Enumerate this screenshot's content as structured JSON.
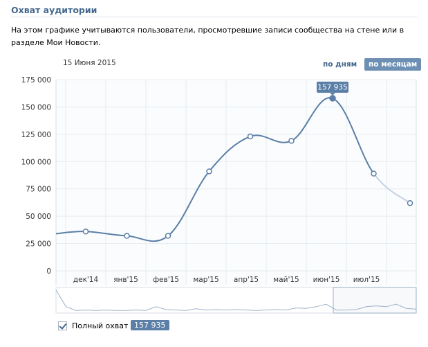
{
  "header": {
    "title": "Охват аудитории",
    "description": "На этом графике учитываются пользователи, просмотревшие записи сообщества на стене или в разделе Мои Новости."
  },
  "controls": {
    "date": "15 Июня 2015",
    "by_days": "по дням",
    "by_months": "по месяцам"
  },
  "legend": {
    "label": "Полный охват",
    "value": "157 935"
  },
  "tooltip": "157 935",
  "colors": {
    "line": "#5b7fa6",
    "line_faded": "#c5d3e2",
    "grid": "#e6ebf0",
    "accent": "#6d8fb3"
  },
  "chart_data": {
    "type": "line",
    "title": "",
    "xlabel": "",
    "ylabel": "",
    "ylim": [
      0,
      175000
    ],
    "yticks": [
      0,
      25000,
      50000,
      75000,
      100000,
      125000,
      150000,
      175000
    ],
    "ytick_labels": [
      "0",
      "25 000",
      "50 000",
      "75 000",
      "100 000",
      "125 000",
      "150 000",
      "175 000"
    ],
    "categories": [
      "дек'14",
      "янв'15",
      "фев'15",
      "мар'15",
      "апр'15",
      "май'15",
      "июн'15",
      "июл'15"
    ],
    "series": [
      {
        "name": "Полный охват",
        "points": [
          {
            "x": "ноя'14",
            "y": 34000,
            "marker": false
          },
          {
            "x": "дек'14",
            "y": 36000,
            "marker": true
          },
          {
            "x": "янв'15",
            "y": 32000,
            "marker": true
          },
          {
            "x": "фев'15",
            "y": 32000,
            "marker": true
          },
          {
            "x": "мар'15",
            "y": 91000,
            "marker": true
          },
          {
            "x": "апр'15",
            "y": 123000,
            "marker": true
          },
          {
            "x": "май'15",
            "y": 119000,
            "marker": true
          },
          {
            "x": "июн'15",
            "y": 157935,
            "marker": true,
            "highlight": true
          },
          {
            "x": "июл'15",
            "y": 89000,
            "marker": true
          },
          {
            "x": "авг'15",
            "y": 62000,
            "marker": true,
            "partial": true
          }
        ]
      }
    ],
    "grid": true
  }
}
